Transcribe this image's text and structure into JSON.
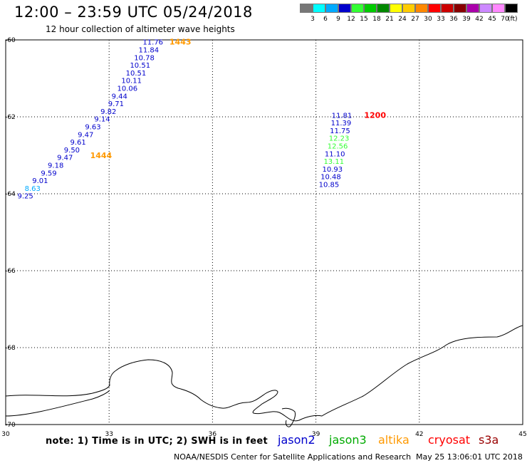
{
  "header": {
    "title": "12:00 – 23:59 UTC 05/24/2018",
    "subtitle": "12 hour collection of altimeter wave heights"
  },
  "color_scale": {
    "unit": "(ft)",
    "items": [
      {
        "label": "3",
        "color": "#777777"
      },
      {
        "label": "6",
        "color": "#00ffff"
      },
      {
        "label": "9",
        "color": "#00aaff"
      },
      {
        "label": "12",
        "color": "#0000cc"
      },
      {
        "label": "15",
        "color": "#33ff33"
      },
      {
        "label": "18",
        "color": "#00cc00"
      },
      {
        "label": "21",
        "color": "#008800"
      },
      {
        "label": "24",
        "color": "#ffff00"
      },
      {
        "label": "27",
        "color": "#ffcc00"
      },
      {
        "label": "30",
        "color": "#ff8800"
      },
      {
        "label": "33",
        "color": "#ff0000"
      },
      {
        "label": "36",
        "color": "#cc0000"
      },
      {
        "label": "39",
        "color": "#880000"
      },
      {
        "label": "42",
        "color": "#aa00aa"
      },
      {
        "label": "45",
        "color": "#cc88ff"
      },
      {
        "label": "70",
        "color": "#ff88ff"
      },
      {
        "label": "",
        "color": "#000000"
      }
    ]
  },
  "map": {
    "lat_labels": [
      "-60",
      "-62",
      "-64",
      "-66",
      "-68",
      "-70"
    ],
    "lon_labels": [
      "30",
      "33",
      "36",
      "39",
      "42",
      "45"
    ],
    "tracks": [
      {
        "time_labels": [
          {
            "text": "1443",
            "color": "#ff9900",
            "lon": 34.75,
            "lat": -60.05
          },
          {
            "text": "1444",
            "color": "#ff9900",
            "lon": 32.45,
            "lat": -63.0
          }
        ],
        "points": [
          {
            "text": "11.76",
            "color": "#0000cc",
            "lon": 34.27,
            "lat": -60.05
          },
          {
            "text": "11.84",
            "color": "#0000cc",
            "lon": 34.15,
            "lat": -60.25
          },
          {
            "text": "10.78",
            "color": "#0000cc",
            "lon": 34.02,
            "lat": -60.45
          },
          {
            "text": "10.51",
            "color": "#0000cc",
            "lon": 33.9,
            "lat": -60.65
          },
          {
            "text": "10.51",
            "color": "#0000cc",
            "lon": 33.78,
            "lat": -60.85
          },
          {
            "text": "10.11",
            "color": "#0000cc",
            "lon": 33.65,
            "lat": -61.05
          },
          {
            "text": "10.06",
            "color": "#0000cc",
            "lon": 33.53,
            "lat": -61.25
          },
          {
            "text": "9.44",
            "color": "#0000cc",
            "lon": 33.3,
            "lat": -61.45
          },
          {
            "text": "9.71",
            "color": "#0000cc",
            "lon": 33.2,
            "lat": -61.65
          },
          {
            "text": "9.82",
            "color": "#0000cc",
            "lon": 32.98,
            "lat": -61.85
          },
          {
            "text": "9.14",
            "color": "#0000cc",
            "lon": 32.8,
            "lat": -62.05
          },
          {
            "text": "9.63",
            "color": "#0000cc",
            "lon": 32.53,
            "lat": -62.25
          },
          {
            "text": "9.47",
            "color": "#0000cc",
            "lon": 32.32,
            "lat": -62.45
          },
          {
            "text": "9.61",
            "color": "#0000cc",
            "lon": 32.1,
            "lat": -62.65
          },
          {
            "text": "9.50",
            "color": "#0000cc",
            "lon": 31.92,
            "lat": -62.85
          },
          {
            "text": "9.47",
            "color": "#0000cc",
            "lon": 31.72,
            "lat": -63.05
          },
          {
            "text": "9.18",
            "color": "#0000cc",
            "lon": 31.45,
            "lat": -63.25
          },
          {
            "text": "9.59",
            "color": "#0000cc",
            "lon": 31.25,
            "lat": -63.45
          },
          {
            "text": "9.01",
            "color": "#0000cc",
            "lon": 31.0,
            "lat": -63.65
          },
          {
            "text": "8.63",
            "color": "#00aaff",
            "lon": 30.78,
            "lat": -63.85
          },
          {
            "text": "9.25",
            "color": "#0000cc",
            "lon": 30.57,
            "lat": -64.05
          }
        ]
      },
      {
        "time_labels": [
          {
            "text": "1200",
            "color": "#ff0000",
            "lon": 40.4,
            "lat": -61.95
          }
        ],
        "points": [
          {
            "text": "11.81",
            "color": "#0000cc",
            "lon": 39.75,
            "lat": -61.95
          },
          {
            "text": "11.39",
            "color": "#0000cc",
            "lon": 39.73,
            "lat": -62.15
          },
          {
            "text": "11.75",
            "color": "#0000cc",
            "lon": 39.7,
            "lat": -62.35
          },
          {
            "text": "12.23",
            "color": "#33ff33",
            "lon": 39.67,
            "lat": -62.55
          },
          {
            "text": "12.56",
            "color": "#33ff33",
            "lon": 39.63,
            "lat": -62.75
          },
          {
            "text": "11.10",
            "color": "#0000cc",
            "lon": 39.55,
            "lat": -62.95
          },
          {
            "text": "13.11",
            "color": "#33ff33",
            "lon": 39.52,
            "lat": -63.15
          },
          {
            "text": "10.93",
            "color": "#0000cc",
            "lon": 39.48,
            "lat": -63.35
          },
          {
            "text": "10.48",
            "color": "#0000cc",
            "lon": 39.43,
            "lat": -63.55
          },
          {
            "text": "10.85",
            "color": "#0000cc",
            "lon": 39.38,
            "lat": -63.75
          }
        ]
      }
    ]
  },
  "note": "note: 1) Time is in UTC; 2) SWH is in feet",
  "satellites": [
    {
      "name": "jason2",
      "color": "#0000cc"
    },
    {
      "name": "jason3",
      "color": "#00aa00"
    },
    {
      "name": "altika",
      "color": "#ff9900"
    },
    {
      "name": "cryosat",
      "color": "#ff0000"
    },
    {
      "name": "s3a",
      "color": "#990000"
    }
  ],
  "footer": {
    "agency": "NOAA/NESDIS Center for Satellite Applications and Research",
    "timestamp": "May 25 13:06:01 UTC 2018"
  }
}
